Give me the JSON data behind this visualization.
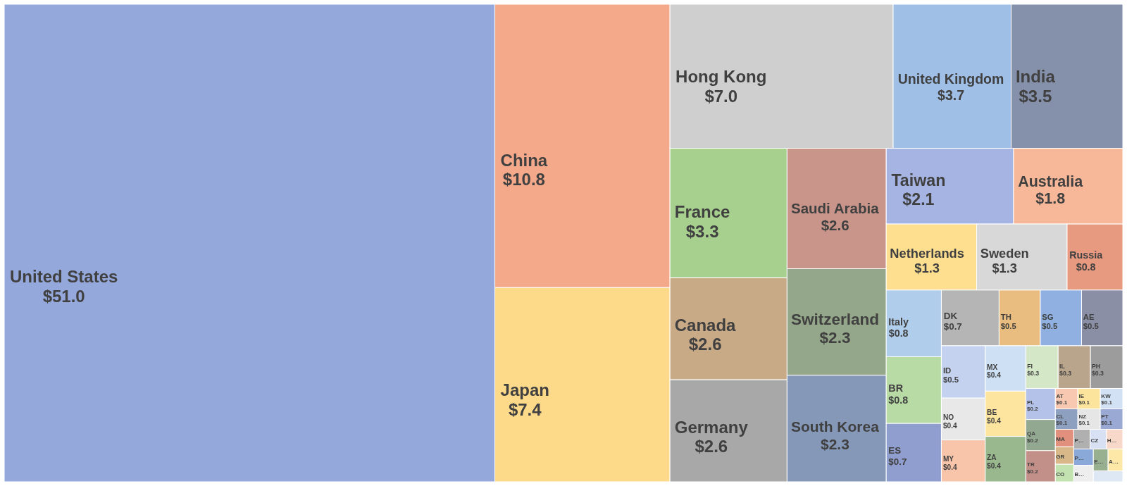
{
  "chart_data": {
    "type": "other",
    "categories": [
      "United States",
      "China",
      "Japan",
      "Hong Kong",
      "United Kingdom",
      "India",
      "France",
      "Canada",
      "Germany",
      "Saudi Arabia",
      "Switzerland",
      "South Korea",
      "Taiwan",
      "Australia",
      "Netherlands",
      "Sweden",
      "Russia",
      "Italy",
      "BR",
      "ES",
      "DK",
      "TH",
      "SG",
      "AE",
      "ID",
      "NO",
      "MY",
      "MX",
      "BE",
      "ZA",
      "FI",
      "IL",
      "PH",
      "PL",
      "QA",
      "TR",
      "AT",
      "IE",
      "KW",
      "CL",
      "NZ",
      "PT",
      "MA",
      "GR",
      "CO",
      "P…",
      "CZ",
      "H…",
      "P…",
      "B…",
      "E…",
      "A…",
      null
    ],
    "values": [
      51.0,
      10.8,
      7.4,
      7.0,
      3.7,
      3.5,
      3.3,
      2.6,
      2.6,
      2.6,
      2.3,
      2.3,
      2.1,
      1.8,
      1.3,
      1.3,
      0.8,
      0.8,
      0.8,
      0.7,
      0.7,
      0.5,
      0.5,
      0.5,
      0.5,
      0.4,
      0.4,
      0.4,
      0.4,
      0.4,
      0.3,
      0.3,
      0.3,
      0.2,
      0.2,
      0.2,
      0.1,
      0.1,
      0.1,
      0.1,
      0.1,
      0.1,
      null,
      null,
      null,
      null,
      null,
      null,
      null,
      null,
      null,
      null,
      null
    ],
    "value_labels": [
      "$51.0",
      "$10.8",
      "$7.4",
      "$7.0",
      "$3.7",
      "$3.5",
      "$3.3",
      "$2.6",
      "$2.6",
      "$2.6",
      "$2.3",
      "$2.3",
      "$2.1",
      "$1.8",
      "$1.3",
      "$1.3",
      "$0.8",
      "$0.8",
      "$0.8",
      "$0.7",
      "$0.7",
      "$0.5",
      "$0.5",
      "$0.5",
      "$0.5",
      "$0.4",
      "$0.4",
      "$0.4",
      "$0.4",
      "$0.4",
      "$0.3",
      "$0.3",
      "$0.3",
      "$0.2",
      "$0.2",
      "$0.2",
      "$0.1",
      "$0.1",
      "$0.1",
      "$0.1",
      "$0.1",
      "$0.1",
      null,
      null,
      null,
      null,
      null,
      null,
      null,
      null,
      null,
      null,
      null
    ],
    "colors": [
      "#95a8dc",
      "#f3a98a",
      "#fdd98a",
      "#cfcfcf",
      "#9fbfe6",
      "#8590ab",
      "#a7d08f",
      "#c8aa86",
      "#a8a8a8",
      "#c9958a",
      "#95a78a",
      "#8598b8",
      "#a5b4e3",
      "#f6b898",
      "#fddf8f",
      "#d8d8d8",
      "#e89a80",
      "#b0cdec",
      "#b8dba6",
      "#8f9dcf",
      "#b5b5b5",
      "#e9bd7f",
      "#8fb0e0",
      "#8a8fa5",
      "#c4d2f0",
      "#e8e8e8",
      "#f8c4aa",
      "#cde0f4",
      "#fde5a0",
      "#9ab88e",
      "#d4e8c8",
      "#b8a58c",
      "#9c9c9c",
      "#b4c2ea",
      "#92a890",
      "#c29088",
      "#f8c8b0",
      "#fde49c",
      "#d2e2f4",
      "#8ea0c0",
      "#e6e6e6",
      "#9aa8d4",
      "#e0907c",
      "#d8b888",
      "#c2e2b0",
      "#b0b0b0",
      "#d8e0f4",
      "#f8d8c8",
      "#8aa8d8",
      "#eeeeee",
      "#98b090",
      "#fde8a8",
      "#dde8f4"
    ]
  }
}
